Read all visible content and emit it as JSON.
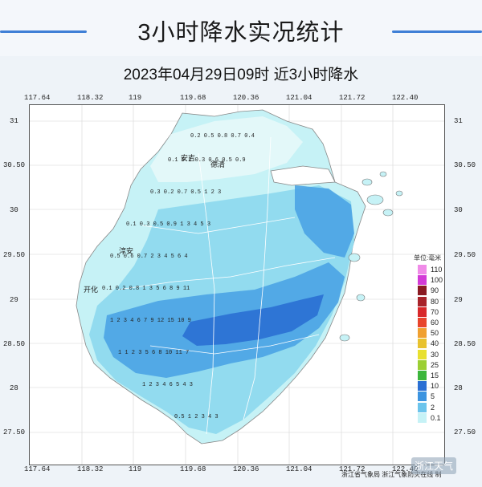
{
  "header": {
    "title": "3小时降水实况统计"
  },
  "subtitle": "2023年04月29日09时  近3小时降水",
  "map": {
    "lon_ticks": [
      "117.64",
      "118.32",
      "119",
      "119.68",
      "120.36",
      "121.04",
      "121.72",
      "122.40"
    ],
    "lat_ticks_left": [
      "31",
      "30.50",
      "30",
      "29.50",
      "29",
      "28.50",
      "28",
      "27.50"
    ],
    "lat_ticks_right": [
      "31",
      "30.50",
      "30",
      "29.50",
      "29",
      "28.50",
      "28",
      "27.50"
    ],
    "lon_ticks_bottom": [
      "117.64",
      "118.32",
      "119",
      "119.68",
      "120.36",
      "121.04",
      "121.72",
      "122.40"
    ],
    "place_labels": [
      "安吉",
      "德清",
      "淳安",
      "开化"
    ],
    "colors": {
      "land": "#ffffff",
      "sea": "#ffffff",
      "light_cyan": "#c6f2f6",
      "cyan": "#8fd9ee",
      "blue": "#4ba3e4",
      "deep_blue": "#2a6fd3"
    }
  },
  "legend": {
    "unit": "单位:毫米",
    "levels": [
      {
        "label": "110",
        "color": "#f08be8"
      },
      {
        "label": "100",
        "color": "#d23bd6"
      },
      {
        "label": "90",
        "color": "#8a1a22"
      },
      {
        "label": "80",
        "color": "#a8232a"
      },
      {
        "label": "70",
        "color": "#d8282a"
      },
      {
        "label": "60",
        "color": "#e8452c"
      },
      {
        "label": "50",
        "color": "#f0a030"
      },
      {
        "label": "40",
        "color": "#e8c22e"
      },
      {
        "label": "30",
        "color": "#e8e030"
      },
      {
        "label": "25",
        "color": "#9ccf34"
      },
      {
        "label": "15",
        "color": "#3cb63c"
      },
      {
        "label": "10",
        "color": "#2a6fd3"
      },
      {
        "label": "5",
        "color": "#3c94e0"
      },
      {
        "label": "2",
        "color": "#6cc4ec"
      },
      {
        "label": "0.1",
        "color": "#c6f2f6"
      }
    ]
  },
  "credit": "浙江省气象局  浙江气象防灾在线 制",
  "watermark": "浙江天气"
}
